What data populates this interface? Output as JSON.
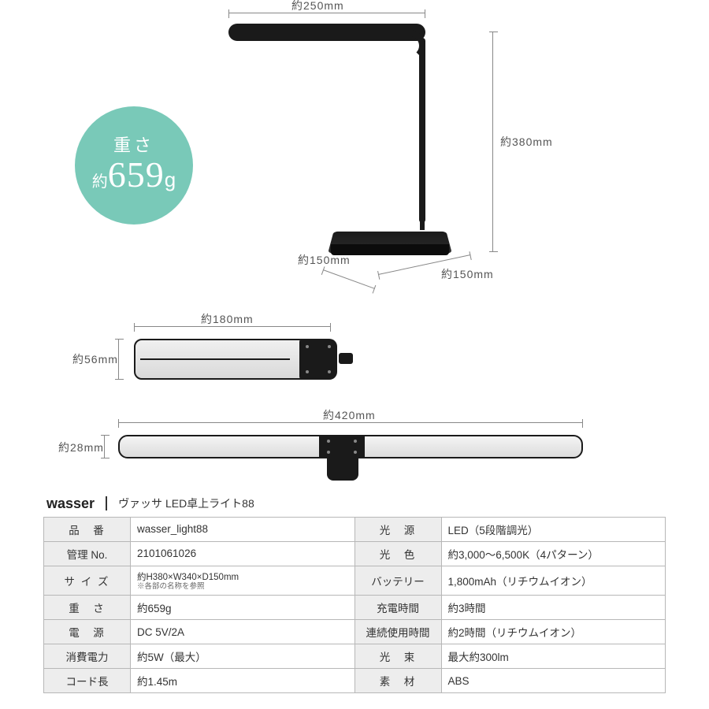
{
  "colors": {
    "badge_bg": "#79c9b8",
    "badge_fg": "#ffffff",
    "dim_line": "#888888",
    "dim_text": "#555555",
    "black": "#1a1a1a",
    "table_border": "#b7b7b7",
    "table_key_bg": "#ededed"
  },
  "weight_badge": {
    "line1": "重さ",
    "approx": "約",
    "value": "659",
    "unit": "g"
  },
  "dimensions": {
    "head_width": "約250mm",
    "neck_height": "約380mm",
    "base_depth": "約150mm",
    "base_width": "約150mm",
    "bar1_width": "約180mm",
    "bar1_height": "約56mm",
    "bar2_width": "約420mm",
    "bar2_height": "約28mm"
  },
  "spec_header": {
    "brand": "wasser",
    "product": "ヴァッサ LED卓上ライト88"
  },
  "spec_rows": [
    {
      "k1": "品　番",
      "v1": "wasser_light88",
      "k2": "光　源",
      "v2": "LED（5段階調光）"
    },
    {
      "k1": "管理 No.",
      "v1": "2101061026",
      "k2": "光　色",
      "v2": "約3,000～6,500K（4パターン）"
    },
    {
      "k1": "サ イ ズ",
      "v1": "約H380×W340×D150mm",
      "v1_note": "※各部の名称を参照",
      "k2": "バッテリー",
      "v2": "1,800mAh（リチウムイオン）"
    },
    {
      "k1": "重　さ",
      "v1": "約659g",
      "k2": "充電時間",
      "v2": "約3時間"
    },
    {
      "k1": "電　源",
      "v1": "DC 5V/2A",
      "k2": "連続使用時間",
      "v2": "約2時間（リチウムイオン）"
    },
    {
      "k1": "消費電力",
      "v1": "約5W（最大）",
      "k2": "光　束",
      "v2": "最大約300lm"
    },
    {
      "k1": "コード長",
      "v1": "約1.45m",
      "k2": "素　材",
      "v2": "ABS"
    }
  ]
}
